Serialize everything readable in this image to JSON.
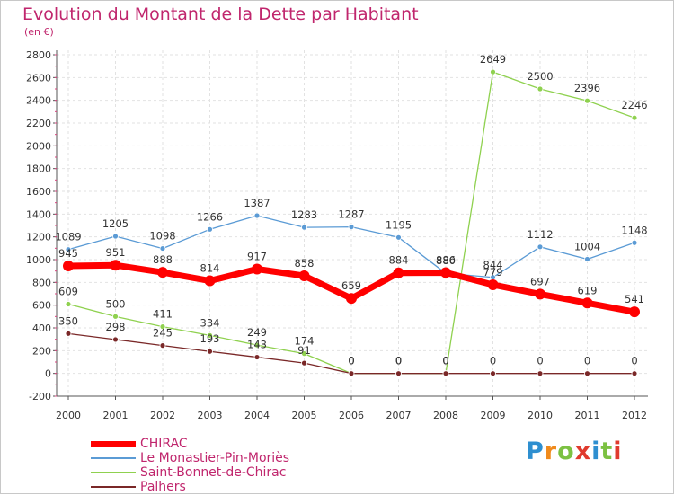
{
  "header": {
    "title": "Evolution du Montant de la Dette par Habitant",
    "unit": "(en €)"
  },
  "logo": {
    "text": "Proxiti",
    "letter_colors": [
      "#2e8fd0",
      "#f08a1c",
      "#7cc142",
      "#e03a2e",
      "#2e8fd0",
      "#7cc142",
      "#e03a2e"
    ]
  },
  "chart_data": {
    "type": "line",
    "title": "Evolution du Montant de la Dette par Habitant",
    "subtitle": "(en €)",
    "categories": [
      "2000",
      "2001",
      "2002",
      "2003",
      "2004",
      "2005",
      "2006",
      "2007",
      "2008",
      "2009",
      "2010",
      "2011",
      "2012"
    ],
    "ylim": [
      -200,
      2800
    ],
    "yticks": [
      -200,
      0,
      200,
      400,
      600,
      800,
      1000,
      1200,
      1400,
      1600,
      1800,
      2000,
      2200,
      2400,
      2600,
      2800
    ],
    "grid": true,
    "legend_position": "bottom-left",
    "series": [
      {
        "name": "Le Monastier-Pin-Moriès",
        "color": "#5b9bd5",
        "values": [
          1089,
          1205,
          1098,
          1266,
          1387,
          1283,
          1287,
          1195,
          880,
          844,
          1112,
          1004,
          1148
        ]
      },
      {
        "name": "Saint-Bonnet-de-Chirac",
        "color": "#8fd14f",
        "values": [
          609,
          500,
          411,
          334,
          249,
          174,
          0,
          0,
          0,
          2649,
          2500,
          2396,
          2246
        ]
      },
      {
        "name": "Palhers",
        "color": "#7a2828",
        "values": [
          350,
          298,
          245,
          193,
          143,
          91,
          0,
          0,
          0,
          0,
          0,
          0,
          0
        ]
      },
      {
        "name": "CHIRAC",
        "color": "#ff0000",
        "values": [
          945,
          951,
          888,
          814,
          917,
          858,
          659,
          884,
          886,
          779,
          697,
          619,
          541
        ]
      }
    ]
  }
}
